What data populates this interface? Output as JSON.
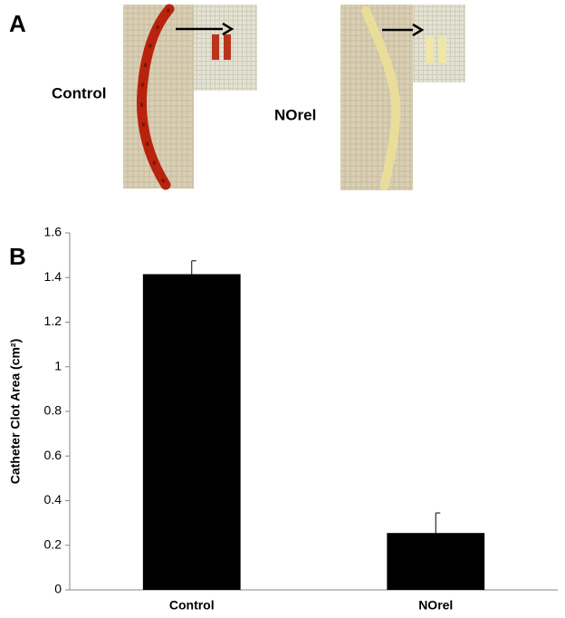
{
  "panel_a": {
    "label": "A",
    "photos": [
      {
        "label": "Control"
      },
      {
        "label": "NOrel"
      }
    ]
  },
  "chart_data": {
    "type": "bar",
    "panel_label": "B",
    "ylabel": "Catheter Clot Area (cm²)",
    "categories": [
      "Control",
      "NOrel"
    ],
    "values": [
      1.415,
      0.255
    ],
    "errors": [
      0.06,
      0.09
    ],
    "color": "#000000",
    "ylim": [
      0,
      1.6
    ],
    "yticks": [
      0,
      0.2,
      0.4,
      0.6,
      0.8,
      1,
      1.2,
      1.4,
      1.6
    ],
    "grid": false
  }
}
